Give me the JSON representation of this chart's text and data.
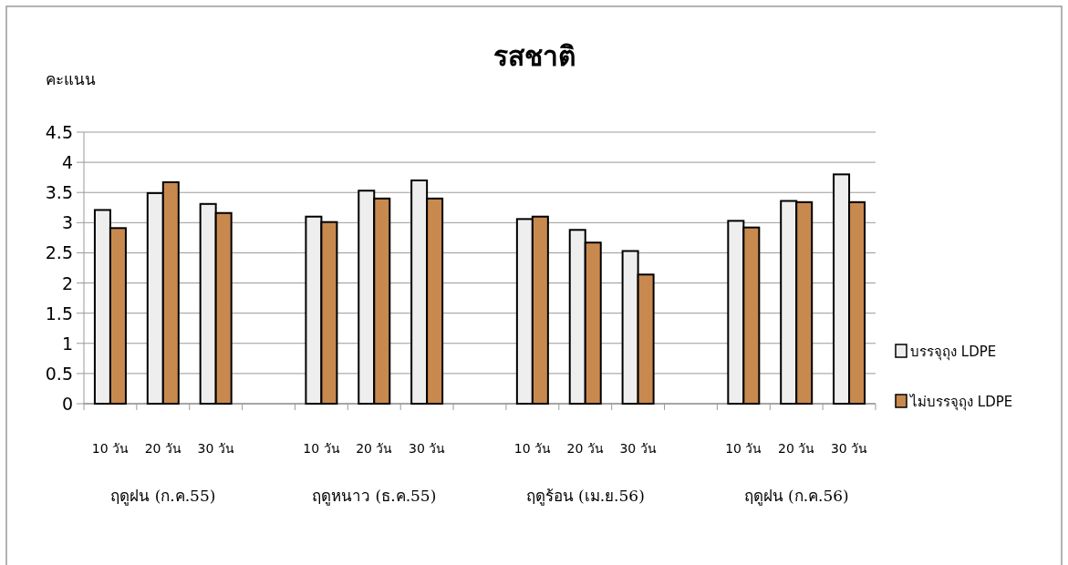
{
  "chart_data": {
    "type": "bar",
    "title": "รสชาติ",
    "ylabel": "คะแนน",
    "categories": [
      "10 วัน",
      "20 วัน",
      "30 วัน",
      null,
      "10 วัน",
      "20 วัน",
      "30 วัน",
      null,
      "10 วัน",
      "20 วัน",
      "30 วัน",
      null,
      "10 วัน",
      "20 วัน",
      "30 วัน"
    ],
    "series": [
      {
        "name": "บรรจุถุง LDPE",
        "color": "#eeeeee",
        "values": [
          3.21,
          3.49,
          3.31,
          null,
          3.1,
          3.53,
          3.7,
          null,
          3.06,
          2.88,
          2.53,
          null,
          3.03,
          3.36,
          3.8
        ]
      },
      {
        "name": "ไม่บรรจุถุง LDPE",
        "color": "#c8894f",
        "values": [
          2.91,
          3.67,
          3.16,
          null,
          3.01,
          3.4,
          3.4,
          null,
          3.1,
          2.67,
          2.14,
          null,
          2.92,
          3.34,
          3.34
        ]
      }
    ],
    "annotations": [
      "ฤดูฝน (ก.ค.55)",
      "ฤดูหนาว (ธ.ค.55)",
      "ฤดูร้อน (เม.ย.56)",
      "ฤดูฝน (ก.ค.56)"
    ],
    "ylim": [
      0,
      4.5
    ],
    "yticks": [
      0,
      0.5,
      1,
      1.5,
      2,
      2.5,
      3,
      3.5,
      4,
      4.5
    ],
    "grid": "y",
    "legend": "right"
  }
}
